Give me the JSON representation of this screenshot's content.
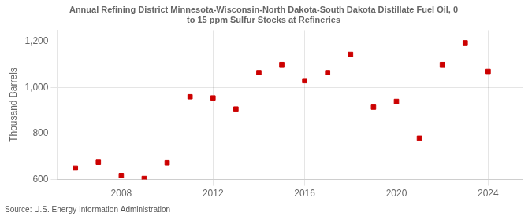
{
  "chart_data": {
    "type": "scatter",
    "title": "Annual Refining District Minnesota-Wisconsin-North Dakota-South Dakota Distillate Fuel Oil, 0\nto 15 ppm Sulfur Stocks at Refineries",
    "ylabel": "Thousand Barrels",
    "annotation": "Source: U.S. Energy Information Administration",
    "x": [
      2006,
      2007,
      2008,
      2009,
      2010,
      2011,
      2012,
      2013,
      2014,
      2015,
      2016,
      2017,
      2018,
      2019,
      2020,
      2021,
      2022,
      2023,
      2024
    ],
    "values": [
      650,
      675,
      618,
      605,
      673,
      960,
      955,
      907,
      1065,
      1100,
      1030,
      1065,
      1145,
      915,
      940,
      780,
      1100,
      1195,
      1070
    ],
    "color": "#cc0000",
    "marker": "square",
    "xlim": [
      2005.2,
      2025.5
    ],
    "xticks": [
      2008,
      2012,
      2016,
      2020,
      2024
    ],
    "ylim": [
      600,
      1250
    ],
    "yticks": [
      600,
      800,
      {
        "value": 1000,
        "label": "1,000"
      },
      {
        "value": 1200,
        "label": "1,200"
      }
    ],
    "grid": true
  }
}
